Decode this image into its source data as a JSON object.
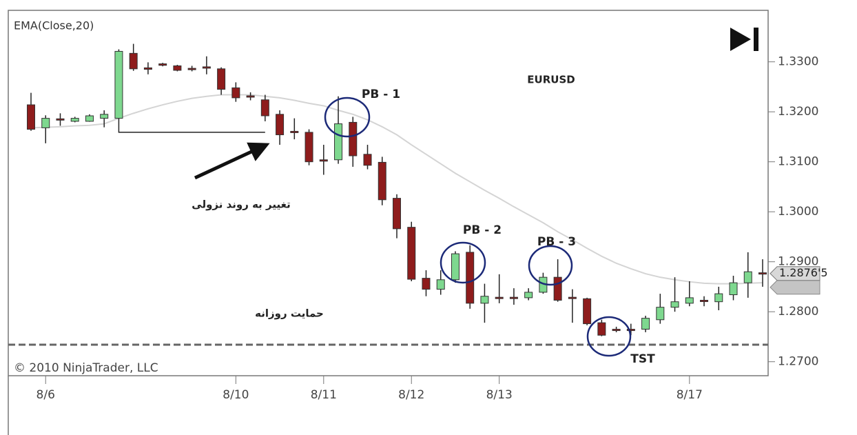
{
  "chart_data": {
    "type": "candlestick",
    "indicator": "EMA(Close,20)",
    "symbol": "EURUSD",
    "copyright": "© 2010 NinjaTrader, LLC",
    "up_color": "#7ed88f",
    "down_color": "#8e1c1c",
    "categories": [
      null,
      "8/6",
      null,
      null,
      null,
      null,
      null,
      null,
      null,
      null,
      null,
      null,
      null,
      null,
      "8/10",
      null,
      null,
      null,
      null,
      null,
      "8/11",
      null,
      null,
      null,
      null,
      null,
      "8/12",
      null,
      null,
      null,
      null,
      null,
      "8/13",
      null,
      null,
      null,
      null,
      null,
      null,
      null,
      null,
      null,
      null,
      null,
      null,
      "8/17",
      null,
      null,
      null,
      null,
      null
    ],
    "open": [
      1.3214,
      1.3168,
      1.3186,
      1.3181,
      1.3181,
      1.3187,
      1.3187,
      1.3317,
      1.3288,
      1.3296,
      1.3292,
      1.3287,
      1.329,
      1.3286,
      1.3248,
      1.3232,
      1.3224,
      1.3195,
      1.3161,
      1.3159,
      1.3104,
      1.3104,
      1.3179,
      1.3115,
      1.3099,
      1.3027,
      1.2969,
      1.2867,
      1.2845,
      1.2864,
      1.2919,
      1.2817,
      1.2829,
      1.2829,
      1.2828,
      1.2839,
      1.2869,
      1.2829,
      1.2826,
      1.2778,
      1.2765,
      1.2765,
      1.2765,
      1.2784,
      1.2809,
      1.2817,
      1.2823,
      1.282,
      1.2834,
      1.2858,
      1.2878
    ],
    "high": [
      1.3238,
      1.3193,
      1.3197,
      1.319,
      1.3195,
      1.3203,
      1.3325,
      1.3336,
      1.3299,
      1.3298,
      1.3294,
      1.3292,
      1.3311,
      1.3289,
      1.3259,
      1.3239,
      1.3234,
      1.3203,
      1.3187,
      1.3165,
      1.3134,
      1.3231,
      1.319,
      1.3134,
      1.311,
      1.3035,
      1.298,
      1.2883,
      1.2883,
      1.2921,
      1.2933,
      1.2856,
      1.2875,
      1.2847,
      1.2847,
      1.2878,
      1.2905,
      1.2845,
      1.2828,
      1.2784,
      1.277,
      1.2776,
      1.2792,
      1.2836,
      1.2869,
      1.2861,
      1.2831,
      1.285,
      1.2872,
      1.2919,
      1.2905
    ],
    "low": [
      1.3162,
      1.3137,
      1.3172,
      1.3179,
      1.318,
      1.3169,
      1.3185,
      1.3282,
      1.3275,
      1.3291,
      1.3281,
      1.3281,
      1.3275,
      1.3234,
      1.322,
      1.3223,
      1.3181,
      1.3134,
      1.3145,
      1.3093,
      1.3074,
      1.3096,
      1.309,
      1.3085,
      1.3013,
      1.2947,
      1.2861,
      1.2831,
      1.2834,
      1.2858,
      1.2806,
      1.2778,
      1.2817,
      1.2814,
      1.2823,
      1.2836,
      1.282,
      1.2778,
      1.2773,
      1.2751,
      1.2759,
      1.2753,
      1.2759,
      1.2776,
      1.28,
      1.2811,
      1.2811,
      1.2803,
      1.2823,
      1.2828,
      1.285
    ],
    "close": [
      1.3165,
      1.3187,
      1.3185,
      1.3187,
      1.3192,
      1.3195,
      1.3321,
      1.3286,
      1.3285,
      1.3293,
      1.3283,
      1.3286,
      1.3288,
      1.3245,
      1.3228,
      1.3231,
      1.3192,
      1.3154,
      1.3159,
      1.31,
      1.3103,
      1.3176,
      1.3112,
      1.3093,
      1.3024,
      1.2966,
      1.2865,
      1.2845,
      1.2864,
      1.2916,
      1.2817,
      1.2831,
      1.2828,
      1.2828,
      1.2839,
      1.2869,
      1.2823,
      1.2828,
      1.2776,
      1.2753,
      1.2764,
      1.2764,
      1.2787,
      1.2809,
      1.282,
      1.2828,
      1.2822,
      1.2836,
      1.2858,
      1.288,
      1.2876
    ],
    "ema": {
      "name": "EMA(Close,20)",
      "color": "#d4d4d4",
      "values": [
        1.3168,
        1.3169,
        1.317,
        1.3172,
        1.3173,
        1.3176,
        1.3187,
        1.3197,
        1.3206,
        1.3214,
        1.3221,
        1.3227,
        1.3231,
        1.3234,
        1.3234,
        1.3234,
        1.3231,
        1.3228,
        1.3223,
        1.3217,
        1.3212,
        1.3203,
        1.3195,
        1.3184,
        1.317,
        1.3154,
        1.3134,
        1.3115,
        1.3096,
        1.3077,
        1.306,
        1.3043,
        1.3027,
        1.301,
        1.2994,
        1.2978,
        1.296,
        1.2944,
        1.2927,
        1.2911,
        1.2897,
        1.2886,
        1.2876,
        1.2869,
        1.2864,
        1.286,
        1.2857,
        1.2856,
        1.2856,
        1.2857,
        1.2858
      ]
    },
    "ylim": [
      1.2672,
      1.3403
    ],
    "yticks": [
      {
        "value": 1.33,
        "label": "1.3300"
      },
      {
        "value": 1.32,
        "label": "1.3200"
      },
      {
        "value": 1.31,
        "label": "1.3100"
      },
      {
        "value": 1.3,
        "label": "1.3000"
      },
      {
        "value": 1.29,
        "label": "1.2900"
      },
      {
        "value": 1.28,
        "label": "1.2800"
      },
      {
        "value": 1.27,
        "label": "1.2700"
      }
    ],
    "last_price": {
      "value": 1.28765,
      "label": "1.2876'5"
    },
    "support": 1.2734,
    "breakout_level": 1.3159,
    "annotations": {
      "pb1": "PB - 1",
      "pb2": "PB - 2",
      "pb3": "PB - 3",
      "tst": "TST",
      "trend_change": "تغییر به روند نزولی",
      "daily_support": "حمایت روزانه"
    }
  }
}
